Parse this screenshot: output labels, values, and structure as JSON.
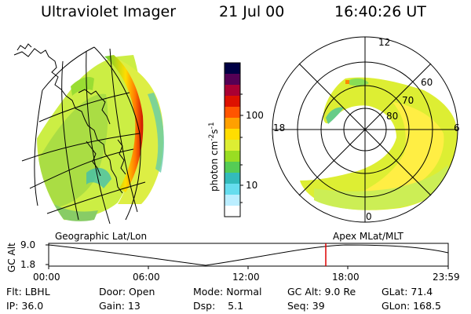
{
  "header": {
    "title": "Ultraviolet Imager",
    "date": "21 Jul 00",
    "time": "16:40:26 UT"
  },
  "left_panel": {
    "caption": "Geographic Lat/Lon"
  },
  "right_panel": {
    "caption": "Apex MLat/MLT",
    "mlt_labels": {
      "top": "12",
      "left": "18",
      "right": "6",
      "bottom": "0"
    },
    "lat_labels": [
      "60",
      "70",
      "80"
    ]
  },
  "colorbar": {
    "ticks": [
      "100",
      "10"
    ],
    "unit_main": "photon cm",
    "unit_sup1": "-2",
    "unit_s": "s",
    "unit_sup2": "-1",
    "colors": [
      "#000044",
      "#550055",
      "#aa0033",
      "#dd1100",
      "#ff5500",
      "#ffa000",
      "#ffdd00",
      "#ddee33",
      "#99dd22",
      "#55cc55",
      "#33bbbb",
      "#66ddee",
      "#bbeeff",
      "#ffffff"
    ]
  },
  "timeline": {
    "ylabel": "GC Alt",
    "ytick_top": "9.0",
    "ytick_bottom": "1.8",
    "xticks": [
      "00:00",
      "06:00",
      "12:00",
      "18:00",
      "23:59"
    ],
    "marker_color": "#dd0000"
  },
  "info": {
    "row1": [
      "Flt: LBHL",
      "Door: Open",
      "Mode: Normal",
      "GC Alt: 9.0 Re",
      "GLat: 71.4"
    ],
    "row2": [
      "IP: 36.0",
      "Gain: 13",
      "Dsp:    5.1",
      "Seq: 39",
      "GLon: 168.5"
    ]
  }
}
